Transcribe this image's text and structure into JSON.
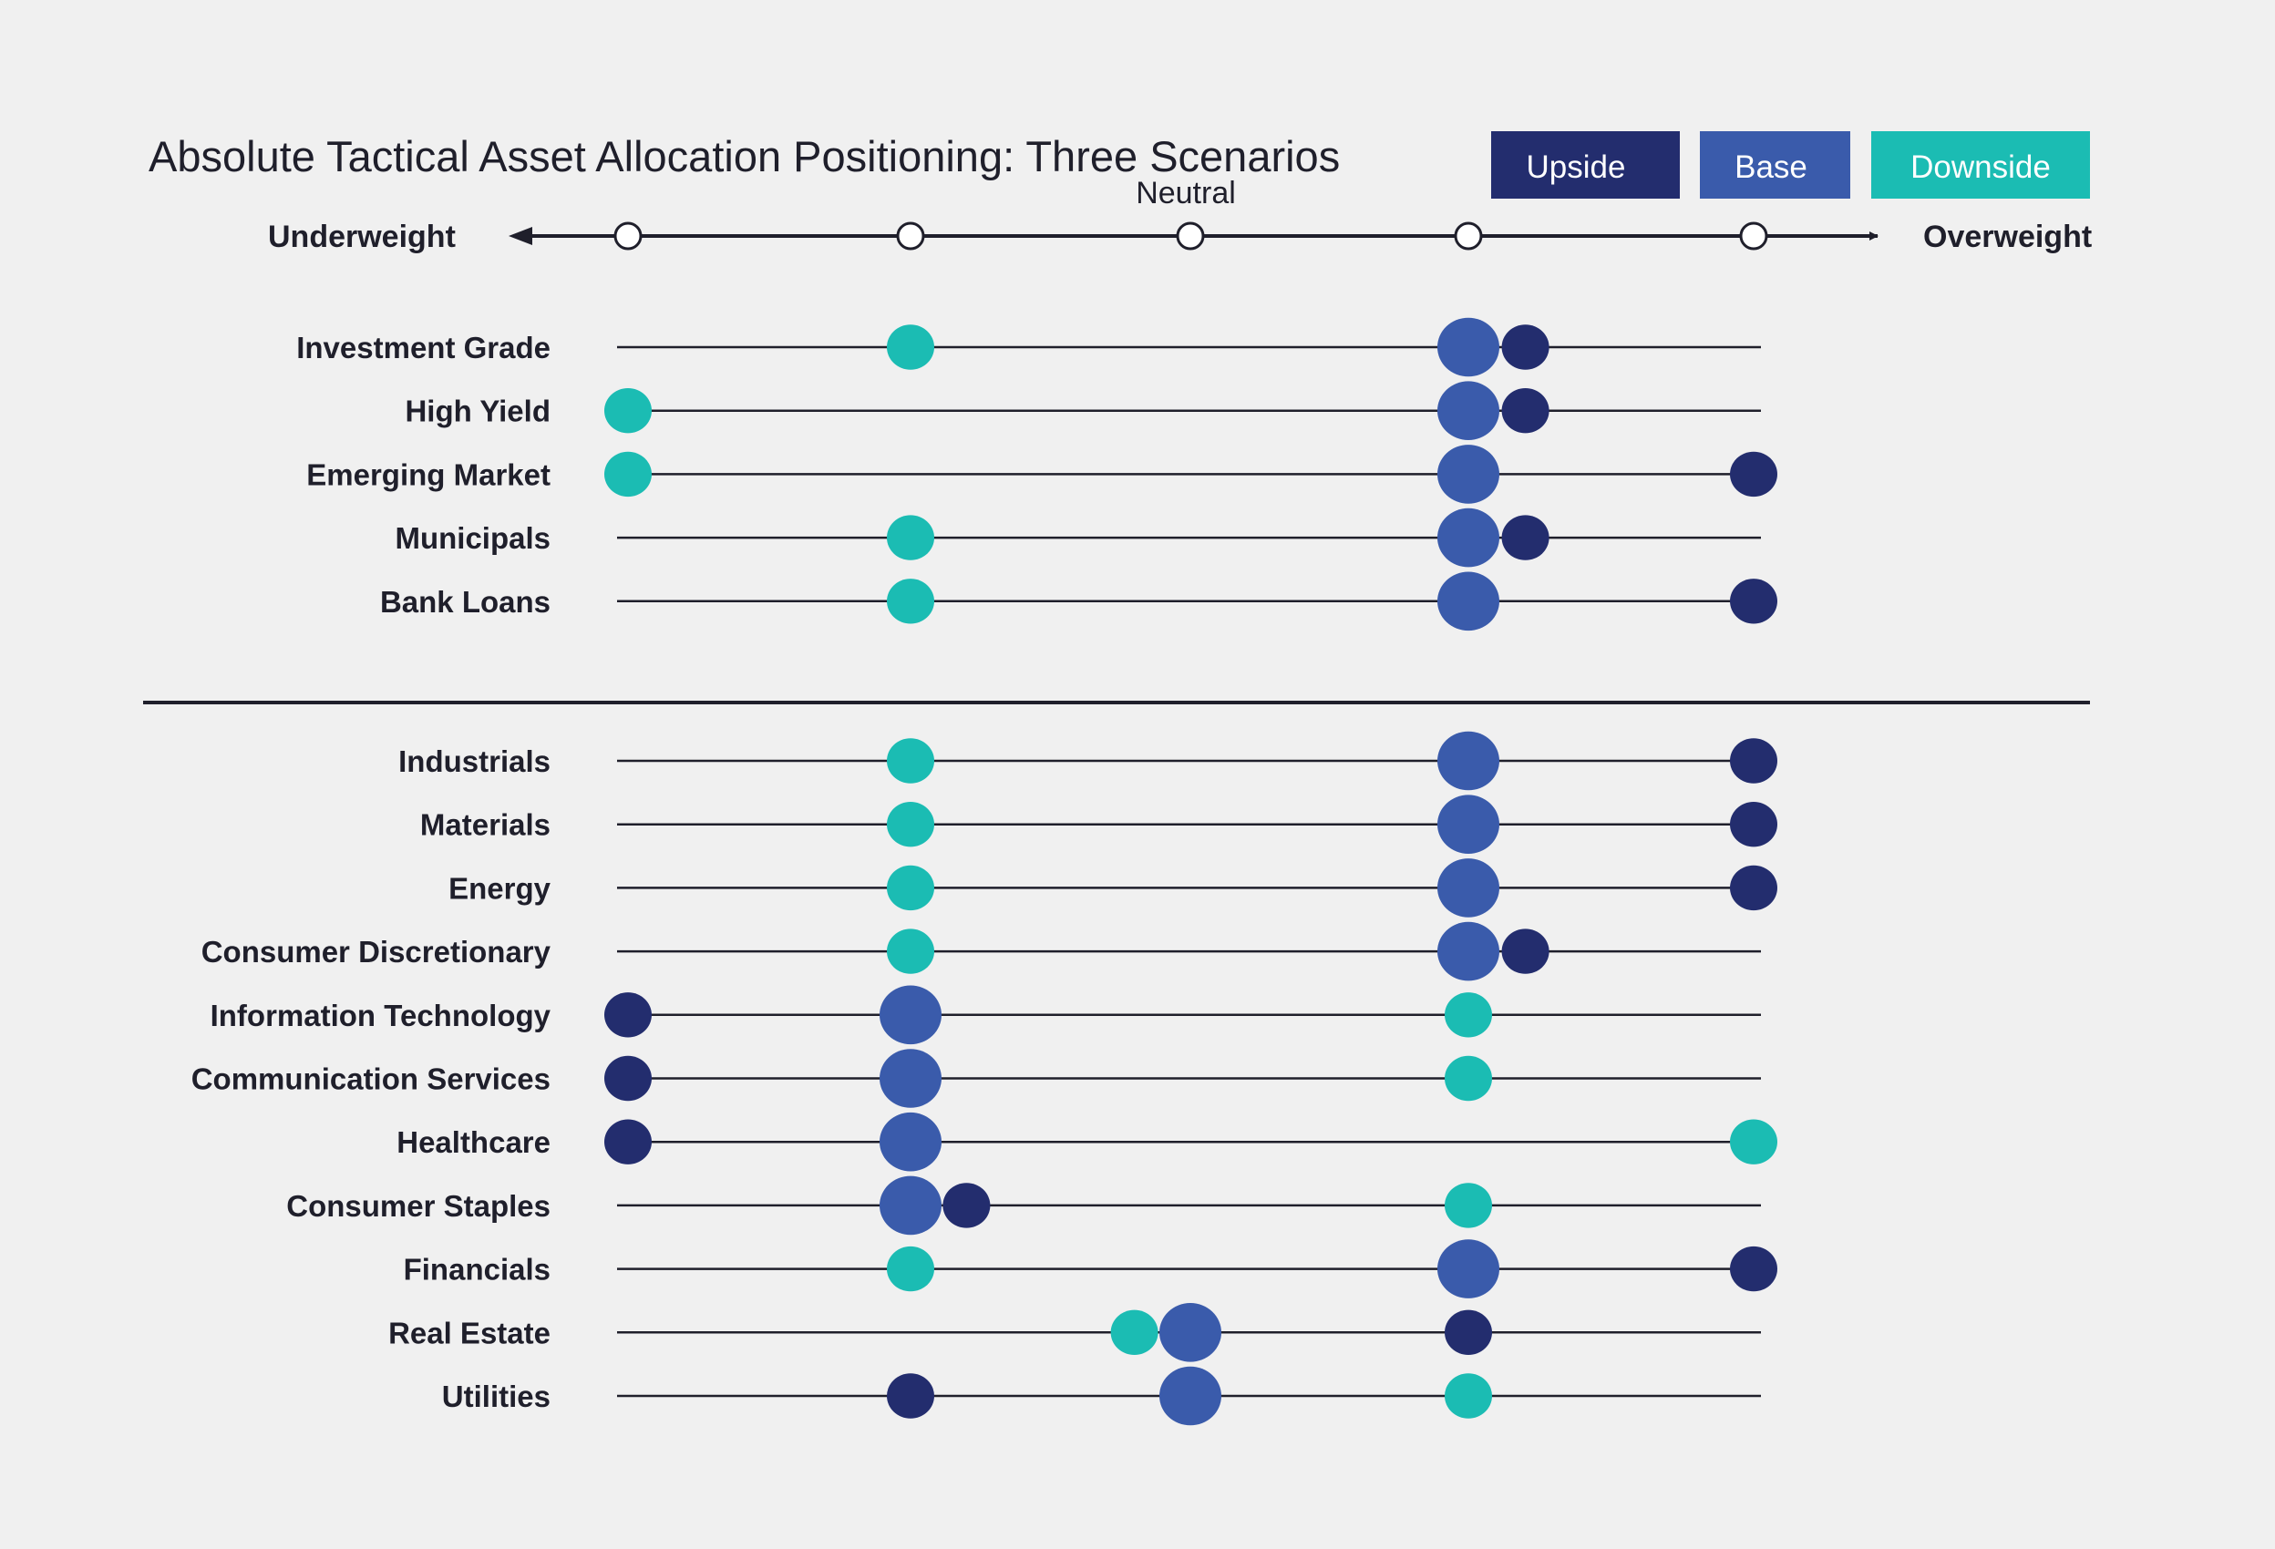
{
  "chart_data": {
    "type": "scatter",
    "title": "Absolute Tactical Asset Allocation Positioning: Three Scenarios",
    "scale": {
      "min_label": "Underweight",
      "max_label": "Overweight",
      "center_label": "Neutral",
      "points": [
        -2,
        -1,
        0,
        1,
        2
      ]
    },
    "legend": {
      "placement": "top-right",
      "items": [
        {
          "name": "Upside",
          "color": "#232d6e"
        },
        {
          "name": "Base",
          "color": "#3a5bab"
        },
        {
          "name": "Downside",
          "color": "#1bbcb3"
        }
      ]
    },
    "series_names": [
      "Upside",
      "Base",
      "Downside"
    ],
    "groups": [
      {
        "rows": [
          {
            "label": "Investment Grade",
            "upside": 1.2,
            "base": 1,
            "downside": -1
          },
          {
            "label": "High Yield",
            "upside": 1.2,
            "base": 1,
            "downside": -2
          },
          {
            "label": "Emerging Market",
            "upside": 2,
            "base": 1,
            "downside": -2
          },
          {
            "label": "Municipals",
            "upside": 1.2,
            "base": 1,
            "downside": -1
          },
          {
            "label": "Bank Loans",
            "upside": 2,
            "base": 1,
            "downside": -1
          }
        ]
      },
      {
        "rows": [
          {
            "label": "Industrials",
            "upside": 2,
            "base": 1,
            "downside": -1
          },
          {
            "label": "Materials",
            "upside": 2,
            "base": 1,
            "downside": -1
          },
          {
            "label": "Energy",
            "upside": 2,
            "base": 1,
            "downside": -1
          },
          {
            "label": "Consumer Discretionary",
            "upside": 1.2,
            "base": 1,
            "downside": -1
          },
          {
            "label": "Information Technology",
            "upside": -2,
            "base": -1,
            "downside": 1
          },
          {
            "label": "Communication Services",
            "upside": -2,
            "base": -1,
            "downside": 1
          },
          {
            "label": "Healthcare",
            "upside": -2,
            "base": -1,
            "downside": 2
          },
          {
            "label": "Consumer Staples",
            "upside": -0.8,
            "base": -1,
            "downside": 1
          },
          {
            "label": "Financials",
            "upside": 2,
            "base": 1,
            "downside": -1
          },
          {
            "label": "Real Estate",
            "upside": 1,
            "base": 0,
            "downside": -0.2
          },
          {
            "label": "Utilities",
            "upside": -1,
            "base": 0,
            "downside": 1
          }
        ]
      }
    ]
  }
}
